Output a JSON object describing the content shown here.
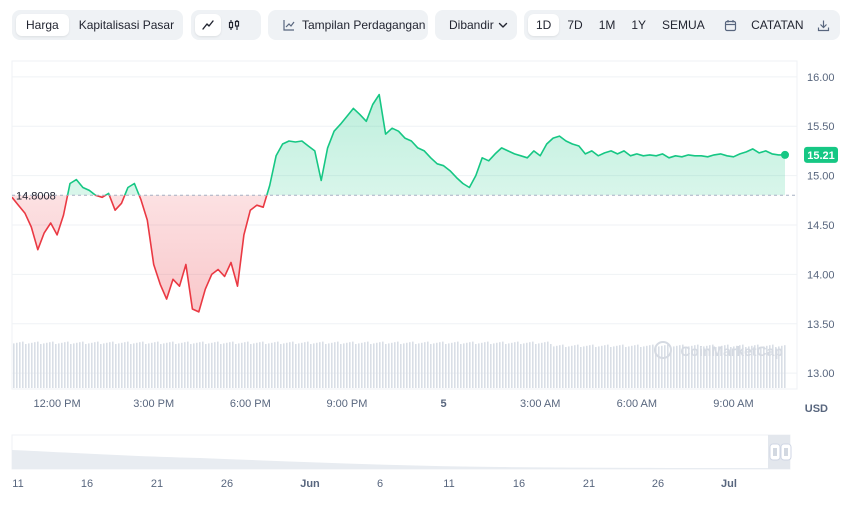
{
  "toolbar": {
    "metric_tabs": [
      "Harga",
      "Kapitalisasi Pasar"
    ],
    "trade_view": "Tampilan Perdagangan",
    "compare": "Dibandir",
    "ranges": [
      "1D",
      "7D",
      "1M",
      "1Y",
      "SEMUA"
    ],
    "log_label": "CATATAN"
  },
  "watermark": "CoinMarketCap",
  "currency": "USD",
  "colors": {
    "up": "#16c784",
    "down": "#ea3943",
    "reference": "#58667e"
  },
  "chart_data": {
    "type": "line",
    "reference_price": 14.8008,
    "reference_label": "14.8008",
    "current_price": 15.21,
    "current_label": "15.21",
    "ylim": [
      12.85,
      16.15
    ],
    "yticks": [
      13.0,
      13.5,
      14.0,
      14.5,
      15.0,
      15.5,
      16.0
    ],
    "ytick_labels": [
      "13.00",
      "13.50",
      "14.00",
      "14.50",
      "15.00",
      "15.50",
      "16.00"
    ],
    "x_range": [
      10.6,
      34.6
    ],
    "xticks": [
      12,
      15,
      18,
      21,
      24,
      27,
      30,
      33
    ],
    "xtick_labels": [
      "12:00 PM",
      "3:00 PM",
      "6:00 PM",
      "9:00 PM",
      "5",
      "3:00 AM",
      "6:00 AM",
      "9:00 AM"
    ],
    "series": [
      {
        "x": [
          10.6,
          10.8,
          11.0,
          11.2,
          11.4,
          11.6,
          11.8,
          12.0,
          12.2,
          12.4,
          12.6,
          12.8,
          13.0,
          13.2,
          13.4,
          13.6,
          13.8,
          14.0,
          14.2,
          14.4,
          14.6,
          14.8,
          15.0,
          15.2,
          15.4,
          15.6,
          15.8,
          16.0,
          16.2,
          16.4,
          16.6,
          16.8,
          17.0,
          17.2,
          17.4,
          17.6,
          17.8,
          18.0,
          18.2,
          18.4,
          18.6,
          18.8,
          19.0,
          19.2,
          19.4,
          19.6,
          19.8,
          20.0,
          20.2,
          20.4,
          20.6,
          20.8,
          21.0,
          21.2,
          21.4,
          21.6,
          21.8,
          22.0,
          22.2,
          22.4,
          22.6,
          22.8,
          23.0,
          23.2,
          23.4,
          23.6,
          23.8,
          24.0,
          24.2,
          24.4,
          24.6,
          24.8,
          25.0,
          25.2,
          25.4,
          25.6,
          25.8,
          26.0,
          26.2,
          26.4,
          26.6,
          26.8,
          27.0,
          27.2,
          27.4,
          27.6,
          27.8,
          28.0,
          28.2,
          28.4,
          28.6,
          28.8,
          29.0,
          29.2,
          29.4,
          29.6,
          29.8,
          30.0,
          30.2,
          30.4,
          30.6,
          30.8,
          31.0,
          31.2,
          31.4,
          31.6,
          31.8,
          32.0,
          32.2,
          32.4,
          32.6,
          32.8,
          33.0,
          33.2,
          33.4,
          33.6,
          33.8,
          34.0,
          34.2,
          34.4,
          34.6
        ],
        "y": [
          14.78,
          14.7,
          14.62,
          14.48,
          14.25,
          14.42,
          14.52,
          14.4,
          14.6,
          14.92,
          14.96,
          14.88,
          14.85,
          14.8,
          14.78,
          14.82,
          14.65,
          14.72,
          14.88,
          14.92,
          14.76,
          14.55,
          14.1,
          13.9,
          13.75,
          13.95,
          13.88,
          14.1,
          13.65,
          13.62,
          13.85,
          14.0,
          14.05,
          13.98,
          14.12,
          13.88,
          14.4,
          14.65,
          14.7,
          14.68,
          14.9,
          15.2,
          15.32,
          15.35,
          15.34,
          15.35,
          15.3,
          15.25,
          14.95,
          15.28,
          15.45,
          15.52,
          15.6,
          15.68,
          15.62,
          15.55,
          15.72,
          15.82,
          15.42,
          15.48,
          15.45,
          15.38,
          15.35,
          15.28,
          15.25,
          15.18,
          15.12,
          15.1,
          15.05,
          14.98,
          14.92,
          14.88,
          15.0,
          15.18,
          15.15,
          15.22,
          15.28,
          15.25,
          15.22,
          15.2,
          15.18,
          15.25,
          15.2,
          15.32,
          15.38,
          15.4,
          15.35,
          15.32,
          15.3,
          15.22,
          15.25,
          15.2,
          15.23,
          15.25,
          15.22,
          15.25,
          15.2,
          15.22,
          15.2,
          15.21,
          15.2,
          15.22,
          15.18,
          15.2,
          15.19,
          15.21,
          15.2,
          15.2,
          15.19,
          15.21,
          15.22,
          15.2,
          15.19,
          15.22,
          15.24,
          15.27,
          15.23,
          15.25,
          15.22,
          15.21,
          15.21
        ]
      }
    ]
  },
  "navigator": {
    "xtick_labels": [
      "11",
      "16",
      "21",
      "26",
      "Jun",
      "6",
      "11",
      "16",
      "21",
      "26",
      "Jul"
    ]
  }
}
